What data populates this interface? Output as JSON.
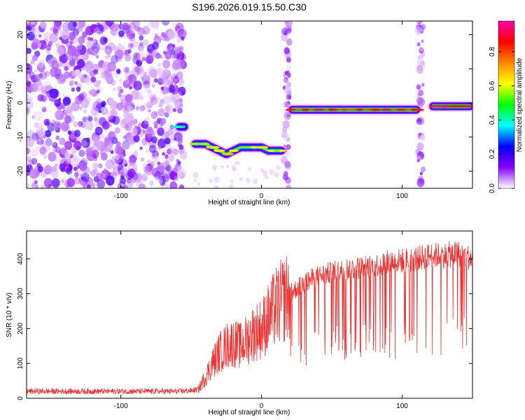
{
  "title": "S196.2026.019.15.50.C30",
  "chart_data": [
    {
      "type": "heatmap",
      "name": "spectrogram",
      "xlabel": "Height of straight line (km)",
      "ylabel": "Frequency (Hz)",
      "xlim": [
        -167,
        150
      ],
      "ylim": [
        -25,
        24
      ],
      "xticks": [
        -100,
        0,
        100
      ],
      "yticks": [
        -20,
        -10,
        0,
        10,
        20
      ],
      "colorbar": {
        "label": "Normalized spectral amplitude",
        "range": [
          0,
          0.98
        ],
        "ticks": [
          0.0,
          0.2,
          0.4,
          0.6,
          0.8
        ],
        "stops": [
          "#ffffff",
          "#8800ff",
          "#0000ff",
          "#00ffff",
          "#00ff00",
          "#ffff00",
          "#ff8800",
          "#ff0000",
          "#ff00aa"
        ]
      },
      "noise_region_x": [
        -167,
        -55
      ],
      "vertical_bands_x": [
        18,
        113
      ],
      "signal_tracks": [
        {
          "x": [
            -58,
            -55
          ],
          "y": [
            -7,
            -7
          ],
          "amplitude": 0.35
        },
        {
          "x": [
            -47,
            -40,
            -35,
            -30,
            -25,
            -20,
            -15,
            -10,
            -5,
            0,
            5,
            10,
            14
          ],
          "y": [
            -12,
            -12,
            -13,
            -14,
            -15,
            -14,
            -13,
            -13,
            -13,
            -13,
            -14,
            -14,
            -14
          ],
          "amplitude": 0.55
        },
        {
          "x": [
            22,
            30,
            40,
            50,
            60,
            70,
            80,
            90,
            100,
            110
          ],
          "y": [
            -2,
            -2,
            -2,
            -2,
            -2,
            -2,
            -2,
            -2,
            -2,
            -2
          ],
          "amplitude": 0.8
        },
        {
          "x": [
            122,
            130,
            140,
            148
          ],
          "y": [
            -1,
            -1,
            -1,
            -1
          ],
          "amplitude": 0.9
        }
      ]
    },
    {
      "type": "line",
      "name": "snr",
      "xlabel": "Height of straight line (km)",
      "ylabel": "SNR (10 * v/v)",
      "xlim": [
        -167,
        150
      ],
      "ylim": [
        0,
        480
      ],
      "xticks": [
        -100,
        0,
        100
      ],
      "yticks": [
        0,
        100,
        200,
        300,
        400
      ],
      "color": "#ee3333",
      "series": [
        {
          "name": "SNR",
          "x": [
            -167,
            -140,
            -120,
            -100,
            -80,
            -60,
            -50,
            -45,
            -40,
            -35,
            -30,
            -25,
            -20,
            -15,
            -10,
            -5,
            0,
            5,
            10,
            20,
            30,
            40,
            50,
            60,
            70,
            80,
            90,
            100,
            110,
            120,
            130,
            140,
            150
          ],
          "y": [
            20,
            20,
            20,
            20,
            20,
            20,
            22,
            25,
            60,
            100,
            130,
            150,
            160,
            150,
            170,
            190,
            200,
            230,
            260,
            300,
            330,
            350,
            360,
            370,
            375,
            380,
            390,
            395,
            400,
            410,
            410,
            415,
            400
          ]
        }
      ]
    }
  ]
}
